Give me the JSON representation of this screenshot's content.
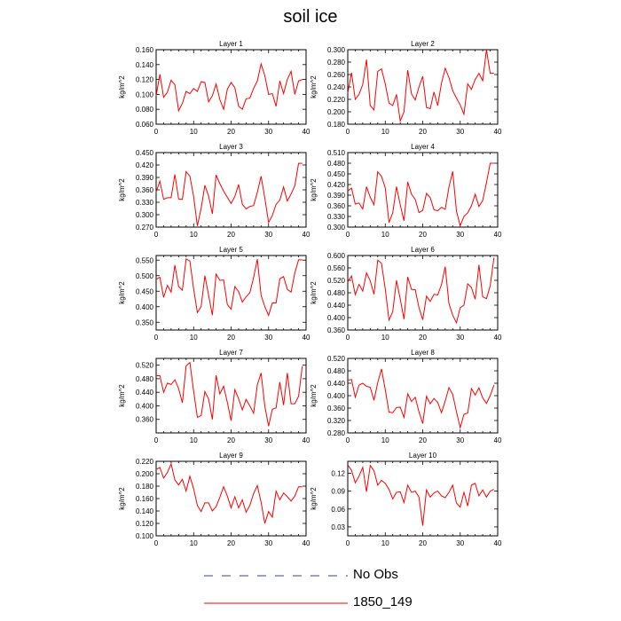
{
  "title": "soil ice",
  "legend": [
    {
      "label": "No Obs",
      "color": "#3b3b9e",
      "style": "dashed"
    },
    {
      "label": "1850_149",
      "color": "#ff0000",
      "style": "solid"
    }
  ],
  "chart_data": [
    {
      "type": "line",
      "title": "Layer 1",
      "ylabel": "kg/m^2",
      "xlim": [
        0,
        40
      ],
      "ylim": [
        0.06,
        0.16
      ],
      "yticks": [
        "0.060",
        "0.080",
        "0.100",
        "0.120",
        "0.140",
        "0.160"
      ],
      "xticks": [
        "0",
        "10",
        "20",
        "30",
        "40"
      ],
      "series": [
        {
          "name": "1850_149",
          "color": "#ff0000",
          "x": [
            0,
            1,
            2,
            3,
            4,
            5,
            6,
            7,
            8,
            9,
            10,
            11,
            12,
            13,
            14,
            15,
            16,
            17,
            18,
            19,
            20,
            21,
            22,
            23,
            24,
            25,
            26,
            27,
            28,
            29,
            30,
            31,
            32,
            33,
            34,
            35,
            36,
            37,
            38,
            39
          ],
          "values": [
            0.098,
            0.127,
            0.096,
            0.103,
            0.119,
            0.113,
            0.078,
            0.088,
            0.104,
            0.101,
            0.108,
            0.104,
            0.117,
            0.116,
            0.09,
            0.098,
            0.114,
            0.093,
            0.08,
            0.107,
            0.116,
            0.109,
            0.084,
            0.08,
            0.094,
            0.095,
            0.108,
            0.118,
            0.141,
            0.125,
            0.1,
            0.101,
            0.084,
            0.118,
            0.101,
            0.12,
            0.131,
            0.1,
            0.118,
            0.12
          ]
        }
      ]
    },
    {
      "type": "line",
      "title": "Layer 2",
      "ylabel": "kg/m^2",
      "xlim": [
        0,
        40
      ],
      "ylim": [
        0.18,
        0.3
      ],
      "yticks": [
        "0.180",
        "0.200",
        "0.220",
        "0.240",
        "0.260",
        "0.280",
        "0.300"
      ],
      "xticks": [
        "0",
        "10",
        "20",
        "30",
        "40"
      ],
      "series": [
        {
          "name": "1850_149",
          "color": "#ff0000",
          "x": [
            0,
            1,
            2,
            3,
            4,
            5,
            6,
            7,
            8,
            9,
            10,
            11,
            12,
            13,
            14,
            15,
            16,
            17,
            18,
            19,
            20,
            21,
            22,
            23,
            24,
            25,
            26,
            27,
            28,
            29,
            30,
            31,
            32,
            33,
            34,
            35,
            36,
            37,
            38,
            39
          ],
          "values": [
            0.23,
            0.263,
            0.22,
            0.228,
            0.244,
            0.284,
            0.21,
            0.203,
            0.265,
            0.269,
            0.245,
            0.214,
            0.21,
            0.228,
            0.185,
            0.2,
            0.267,
            0.229,
            0.219,
            0.24,
            0.257,
            0.207,
            0.205,
            0.232,
            0.21,
            0.246,
            0.27,
            0.255,
            0.234,
            0.222,
            0.211,
            0.196,
            0.245,
            0.236,
            0.252,
            0.262,
            0.25,
            0.3,
            0.262,
            0.262
          ]
        }
      ]
    },
    {
      "type": "line",
      "title": "Layer 3",
      "ylabel": "kg/m^2",
      "xlim": [
        0,
        40
      ],
      "ylim": [
        0.27,
        0.45
      ],
      "yticks": [
        "0.270",
        "0.300",
        "0.330",
        "0.360",
        "0.390",
        "0.420",
        "0.450"
      ],
      "xticks": [
        "0",
        "10",
        "20",
        "30",
        "40"
      ],
      "series": [
        {
          "name": "1850_149",
          "color": "#ff0000",
          "x": [
            0,
            1,
            2,
            3,
            4,
            5,
            6,
            7,
            8,
            9,
            10,
            11,
            12,
            13,
            14,
            15,
            16,
            17,
            18,
            19,
            20,
            21,
            22,
            23,
            24,
            25,
            26,
            27,
            28,
            29,
            30,
            31,
            32,
            33,
            34,
            35,
            36,
            37,
            38,
            39
          ],
          "values": [
            0.355,
            0.381,
            0.337,
            0.341,
            0.341,
            0.397,
            0.338,
            0.337,
            0.404,
            0.393,
            0.344,
            0.273,
            0.315,
            0.371,
            0.345,
            0.302,
            0.396,
            0.375,
            0.357,
            0.342,
            0.327,
            0.344,
            0.373,
            0.325,
            0.314,
            0.32,
            0.322,
            0.354,
            0.393,
            0.34,
            0.281,
            0.298,
            0.325,
            0.335,
            0.367,
            0.333,
            0.35,
            0.37,
            0.424,
            0.424
          ]
        }
      ]
    },
    {
      "type": "line",
      "title": "Layer 4",
      "ylabel": "kg/m^2",
      "xlim": [
        0,
        40
      ],
      "ylim": [
        0.3,
        0.51
      ],
      "yticks": [
        "0.300",
        "0.330",
        "0.360",
        "0.390",
        "0.420",
        "0.450",
        "0.480",
        "0.510"
      ],
      "xticks": [
        "0",
        "10",
        "20",
        "30",
        "40"
      ],
      "series": [
        {
          "name": "1850_149",
          "color": "#ff0000",
          "x": [
            0,
            1,
            2,
            3,
            4,
            5,
            6,
            7,
            8,
            9,
            10,
            11,
            12,
            13,
            14,
            15,
            16,
            17,
            18,
            19,
            20,
            21,
            22,
            23,
            24,
            25,
            26,
            27,
            28,
            29,
            30,
            31,
            32,
            33,
            34,
            35,
            36,
            37,
            38,
            39
          ],
          "values": [
            0.402,
            0.41,
            0.365,
            0.368,
            0.351,
            0.414,
            0.384,
            0.363,
            0.456,
            0.443,
            0.411,
            0.313,
            0.34,
            0.414,
            0.363,
            0.318,
            0.427,
            0.393,
            0.378,
            0.341,
            0.347,
            0.395,
            0.383,
            0.349,
            0.346,
            0.356,
            0.35,
            0.413,
            0.457,
            0.345,
            0.304,
            0.33,
            0.34,
            0.36,
            0.393,
            0.358,
            0.375,
            0.425,
            0.48,
            0.48
          ]
        }
      ]
    },
    {
      "type": "line",
      "title": "Layer 5",
      "ylabel": "kg/m^2",
      "xlim": [
        0,
        40
      ],
      "ylim": [
        0.325,
        0.565
      ],
      "yticks": [
        "0.350",
        "0.400",
        "0.450",
        "0.500",
        "0.550"
      ],
      "xticks": [
        "0",
        "10",
        "20",
        "30",
        "40"
      ],
      "series": [
        {
          "name": "1850_149",
          "color": "#ff0000",
          "x": [
            0,
            1,
            2,
            3,
            4,
            5,
            6,
            7,
            8,
            9,
            10,
            11,
            12,
            13,
            14,
            15,
            16,
            17,
            18,
            19,
            20,
            21,
            22,
            23,
            24,
            25,
            26,
            27,
            28,
            29,
            30,
            31,
            32,
            33,
            34,
            35,
            36,
            37,
            38,
            39
          ],
          "values": [
            0.488,
            0.495,
            0.43,
            0.469,
            0.447,
            0.534,
            0.465,
            0.453,
            0.554,
            0.547,
            0.458,
            0.381,
            0.4,
            0.5,
            0.437,
            0.373,
            0.505,
            0.485,
            0.486,
            0.407,
            0.392,
            0.465,
            0.449,
            0.415,
            0.432,
            0.445,
            0.494,
            0.553,
            0.437,
            0.4,
            0.372,
            0.412,
            0.412,
            0.49,
            0.497,
            0.456,
            0.447,
            0.509,
            0.551,
            0.551
          ]
        }
      ]
    },
    {
      "type": "line",
      "title": "Layer 6",
      "ylabel": "kg/m^2",
      "xlim": [
        0,
        40
      ],
      "ylim": [
        0.36,
        0.6
      ],
      "yticks": [
        "0.360",
        "0.400",
        "0.440",
        "0.480",
        "0.520",
        "0.560",
        "0.600"
      ],
      "xticks": [
        "0",
        "10",
        "20",
        "30",
        "40"
      ],
      "series": [
        {
          "name": "1850_149",
          "color": "#ff0000",
          "x": [
            0,
            1,
            2,
            3,
            4,
            5,
            6,
            7,
            8,
            9,
            10,
            11,
            12,
            13,
            14,
            15,
            16,
            17,
            18,
            19,
            20,
            21,
            22,
            23,
            24,
            25,
            26,
            27,
            28,
            29,
            30,
            31,
            32,
            33,
            34,
            35,
            36,
            37,
            38,
            39
          ],
          "values": [
            0.515,
            0.534,
            0.474,
            0.507,
            0.485,
            0.544,
            0.518,
            0.475,
            0.585,
            0.575,
            0.493,
            0.392,
            0.419,
            0.52,
            0.46,
            0.395,
            0.531,
            0.491,
            0.49,
            0.432,
            0.393,
            0.469,
            0.452,
            0.475,
            0.473,
            0.506,
            0.564,
            0.445,
            0.408,
            0.383,
            0.432,
            0.44,
            0.509,
            0.497,
            0.459,
            0.57,
            0.467,
            0.461,
            0.502,
            0.593
          ]
        }
      ]
    },
    {
      "type": "line",
      "title": "Layer 7",
      "ylabel": "kg/m^2",
      "xlim": [
        0,
        40
      ],
      "ylim": [
        0.32,
        0.54
      ],
      "yticks": [
        "0.360",
        "0.400",
        "0.440",
        "0.480",
        "0.520"
      ],
      "xticks": [
        "0",
        "10",
        "20",
        "30",
        "40"
      ],
      "series": [
        {
          "name": "1850_149",
          "color": "#ff0000",
          "x": [
            0,
            1,
            2,
            3,
            4,
            5,
            6,
            7,
            8,
            9,
            10,
            11,
            12,
            13,
            14,
            15,
            16,
            17,
            18,
            19,
            20,
            21,
            22,
            23,
            24,
            25,
            26,
            27,
            28,
            29,
            30,
            31,
            32,
            33,
            34,
            35,
            36,
            37,
            38,
            39
          ],
          "values": [
            0.489,
            0.489,
            0.44,
            0.467,
            0.463,
            0.477,
            0.451,
            0.409,
            0.518,
            0.528,
            0.444,
            0.366,
            0.371,
            0.442,
            0.42,
            0.36,
            0.49,
            0.435,
            0.458,
            0.41,
            0.356,
            0.448,
            0.421,
            0.388,
            0.419,
            0.4,
            0.378,
            0.462,
            0.497,
            0.399,
            0.34,
            0.39,
            0.394,
            0.47,
            0.402,
            0.497,
            0.406,
            0.406,
            0.428,
            0.517
          ]
        }
      ]
    },
    {
      "type": "line",
      "title": "Layer 8",
      "ylabel": "kg/m^2",
      "xlim": [
        0,
        40
      ],
      "ylim": [
        0.28,
        0.52
      ],
      "yticks": [
        "0.280",
        "0.320",
        "0.360",
        "0.400",
        "0.440",
        "0.480",
        "0.520"
      ],
      "xticks": [
        "0",
        "10",
        "20",
        "30",
        "40"
      ],
      "series": [
        {
          "name": "1850_149",
          "color": "#ff0000",
          "x": [
            0,
            1,
            2,
            3,
            4,
            5,
            6,
            7,
            8,
            9,
            10,
            11,
            12,
            13,
            14,
            15,
            16,
            17,
            18,
            19,
            20,
            21,
            22,
            23,
            24,
            25,
            26,
            27,
            28,
            29,
            30,
            31,
            32,
            33,
            34,
            35,
            36,
            37,
            38,
            39
          ],
          "values": [
            0.45,
            0.452,
            0.395,
            0.434,
            0.44,
            0.43,
            0.427,
            0.385,
            0.442,
            0.486,
            0.42,
            0.347,
            0.345,
            0.362,
            0.363,
            0.33,
            0.406,
            0.381,
            0.395,
            0.348,
            0.31,
            0.398,
            0.374,
            0.391,
            0.378,
            0.345,
            0.383,
            0.426,
            0.404,
            0.348,
            0.297,
            0.34,
            0.344,
            0.423,
            0.402,
            0.425,
            0.393,
            0.375,
            0.4,
            0.434
          ]
        }
      ]
    },
    {
      "type": "line",
      "title": "Layer 9",
      "ylabel": "kg/m^2",
      "xlim": [
        0,
        40
      ],
      "ylim": [
        0.1,
        0.22
      ],
      "yticks": [
        "0.100",
        "0.120",
        "0.140",
        "0.160",
        "0.180",
        "0.200",
        "0.220"
      ],
      "xticks": [
        "0",
        "10",
        "20",
        "30",
        "40"
      ],
      "series": [
        {
          "name": "1850_149",
          "color": "#ff0000",
          "x": [
            0,
            1,
            2,
            3,
            4,
            5,
            6,
            7,
            8,
            9,
            10,
            11,
            12,
            13,
            14,
            15,
            16,
            17,
            18,
            19,
            20,
            21,
            22,
            23,
            24,
            25,
            26,
            27,
            28,
            29,
            30,
            31,
            32,
            33,
            34,
            35,
            36,
            37,
            38,
            39
          ],
          "values": [
            0.207,
            0.21,
            0.193,
            0.202,
            0.216,
            0.19,
            0.182,
            0.191,
            0.172,
            0.196,
            0.176,
            0.149,
            0.139,
            0.153,
            0.153,
            0.14,
            0.147,
            0.162,
            0.179,
            0.164,
            0.145,
            0.163,
            0.145,
            0.158,
            0.138,
            0.149,
            0.168,
            0.181,
            0.154,
            0.12,
            0.139,
            0.13,
            0.172,
            0.158,
            0.169,
            0.163,
            0.156,
            0.164,
            0.179,
            0.179
          ]
        }
      ]
    },
    {
      "type": "line",
      "title": "Layer 10",
      "ylabel": "kg/m^2",
      "xlim": [
        0,
        40
      ],
      "ylim": [
        0.015,
        0.14
      ],
      "yticks": [
        "0.03",
        "0.06",
        "0.09",
        "0.12"
      ],
      "xticks": [
        "0",
        "10",
        "20",
        "30",
        "40"
      ],
      "series": [
        {
          "name": "1850_149",
          "color": "#ff0000",
          "x": [
            0,
            1,
            2,
            3,
            4,
            5,
            6,
            7,
            8,
            9,
            10,
            11,
            12,
            13,
            14,
            15,
            16,
            17,
            18,
            19,
            20,
            21,
            22,
            23,
            24,
            25,
            26,
            27,
            28,
            29,
            30,
            31,
            32,
            33,
            34,
            35,
            36,
            37,
            38,
            39
          ],
          "values": [
            0.134,
            0.125,
            0.104,
            0.115,
            0.13,
            0.089,
            0.133,
            0.124,
            0.1,
            0.108,
            0.103,
            0.093,
            0.077,
            0.088,
            0.089,
            0.071,
            0.1,
            0.088,
            0.09,
            0.08,
            0.032,
            0.092,
            0.08,
            0.087,
            0.09,
            0.082,
            0.079,
            0.088,
            0.1,
            0.07,
            0.063,
            0.088,
            0.065,
            0.1,
            0.103,
            0.082,
            0.092,
            0.08,
            0.09,
            0.093
          ]
        }
      ]
    }
  ]
}
